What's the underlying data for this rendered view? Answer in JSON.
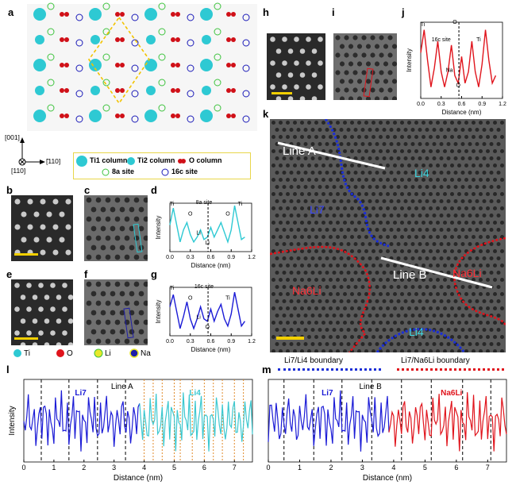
{
  "panels": {
    "a": "a",
    "b": "b",
    "c": "c",
    "d": "d",
    "e": "e",
    "f": "f",
    "g": "g",
    "h": "h",
    "i": "i",
    "j": "j",
    "k": "k",
    "l": "l",
    "m": "m"
  },
  "panel_a": {
    "dir_001": "[001]",
    "dir_110": "[110]",
    "dir_m110": "[̄110]",
    "legend": {
      "ti1": "Ti1 column",
      "ti2": "Ti2 column",
      "o": "O column",
      "s8a": "8a site",
      "s16c": "16c site"
    }
  },
  "element_legend": {
    "ti": "Ti",
    "o": "O",
    "li": "Li",
    "na": "Na"
  },
  "colors": {
    "ti": "#2ec9d3",
    "o": "#e0141c",
    "li": "#e8e82a",
    "na": "#1e1ea8",
    "li7": "#1b1bd6",
    "li4_line": "#3cc8d0",
    "na6li": "#e0141c",
    "dash_blue": "#1c2fd6",
    "dash_red": "#e0141c",
    "scalebar": "#f2cf00"
  },
  "chart_data": [
    {
      "type": "line",
      "panel": "d",
      "xlabel": "Distance (nm)",
      "ylabel": "Intensity",
      "xticks": [
        "0.0",
        "0.3",
        "0.6",
        "0.9",
        "1.2"
      ],
      "xlim": [
        0,
        1.2
      ],
      "series": [
        {
          "color": "#2ec9d3",
          "x": [
            0,
            0.05,
            0.1,
            0.15,
            0.2,
            0.25,
            0.3,
            0.35,
            0.4,
            0.45,
            0.5,
            0.55,
            0.6,
            0.65,
            0.7,
            0.75,
            0.8,
            0.85,
            0.9,
            0.95,
            1.0,
            1.05,
            1.1
          ],
          "y": [
            0.55,
            0.9,
            0.55,
            0.2,
            0.45,
            0.6,
            0.35,
            0.2,
            0.3,
            0.45,
            0.25,
            0.3,
            0.5,
            0.3,
            0.45,
            0.6,
            0.4,
            0.2,
            0.45,
            0.95,
            0.6,
            0.25,
            0.3
          ]
        }
      ],
      "annotations": [
        "Ti",
        "8a site",
        "O",
        "Li",
        "Li",
        "O",
        "Ti"
      ]
    },
    {
      "type": "line",
      "panel": "g",
      "xlabel": "Distance (nm)",
      "ylabel": "Intensity",
      "xticks": [
        "0.0",
        "0.3",
        "0.6",
        "0.9",
        "1.2"
      ],
      "xlim": [
        0,
        1.2
      ],
      "series": [
        {
          "color": "#1b1bd6",
          "x": [
            0,
            0.05,
            0.1,
            0.15,
            0.2,
            0.25,
            0.3,
            0.35,
            0.4,
            0.45,
            0.5,
            0.55,
            0.6,
            0.65,
            0.7,
            0.75,
            0.8,
            0.85,
            0.9,
            0.95,
            1.0,
            1.05,
            1.1
          ],
          "y": [
            0.6,
            0.85,
            0.5,
            0.15,
            0.4,
            0.7,
            0.35,
            0.15,
            0.35,
            0.6,
            0.35,
            0.3,
            0.55,
            0.3,
            0.5,
            0.65,
            0.35,
            0.2,
            0.45,
            0.9,
            0.55,
            0.2,
            0.3
          ]
        }
      ],
      "annotations": [
        "Ti",
        "16c site",
        "O",
        "Li",
        "O",
        "Ti"
      ]
    },
    {
      "type": "line",
      "panel": "j",
      "xlabel": "Distance (nm)",
      "ylabel": "Intensity",
      "xticks": [
        "0.0",
        "0.3",
        "0.6",
        "0.9",
        "1.2"
      ],
      "xlim": [
        0,
        1.2
      ],
      "series": [
        {
          "color": "#e0141c",
          "x": [
            0,
            0.05,
            0.1,
            0.15,
            0.2,
            0.25,
            0.3,
            0.35,
            0.4,
            0.45,
            0.5,
            0.55,
            0.6,
            0.65,
            0.7,
            0.75,
            0.8,
            0.85,
            0.9,
            0.95,
            1.0,
            1.05,
            1.1
          ],
          "y": [
            0.6,
            0.9,
            0.5,
            0.15,
            0.4,
            0.75,
            0.35,
            0.15,
            0.35,
            0.7,
            0.3,
            0.2,
            0.55,
            0.2,
            0.35,
            0.75,
            0.35,
            0.15,
            0.45,
            0.9,
            0.5,
            0.2,
            0.3
          ]
        }
      ],
      "annotations": [
        "Ti",
        "O",
        "16c site",
        "Na",
        "O",
        "Ti"
      ]
    },
    {
      "type": "line",
      "panel": "l",
      "xlabel": "Distance (nm)",
      "ylabel": "Intensity",
      "xticks": [
        "0",
        "1",
        "2",
        "3",
        "4",
        "5",
        "6",
        "7"
      ],
      "xlim": [
        0,
        7.6
      ],
      "regions": [
        "Li7",
        "Li4"
      ],
      "line_label": "Line A",
      "split_x": 3.9,
      "dashes_black": [
        0.58,
        1.5,
        2.45,
        3.38
      ],
      "dashes_orange": [
        4.0,
        4.3,
        4.6,
        5.0,
        5.2,
        5.6,
        6.0,
        6.3,
        6.6,
        7.0,
        7.3
      ]
    },
    {
      "type": "line",
      "panel": "m",
      "xlabel": "Distance (nm)",
      "ylabel": "",
      "xticks": [
        "0",
        "1",
        "2",
        "3",
        "4",
        "5",
        "6",
        "7"
      ],
      "xlim": [
        0,
        7.6
      ],
      "regions": [
        "Li7",
        "Na6Li"
      ],
      "line_label": "Line B",
      "split_x": 3.9,
      "dashes_black": [
        0.5,
        1.45,
        2.35,
        3.3,
        4.25,
        5.2,
        6.2,
        7.1
      ]
    }
  ],
  "panel_k": {
    "line_a": "Line A",
    "line_b": "Line B",
    "li4_top": "Li4",
    "li7": "Li7",
    "na6li_left": "Na6Li",
    "na6li_right": "Na6Li",
    "li4_bottom": "Li4"
  },
  "boundary_legend": {
    "li7_li4": "Li7/Li4 boundary",
    "li7_na6li": "Li7/Na6Li boundary"
  }
}
